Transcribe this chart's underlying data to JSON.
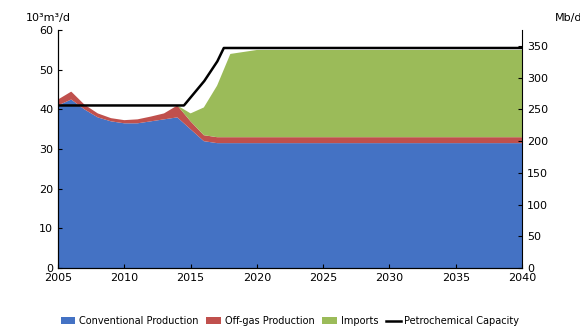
{
  "ylabel_left": "10³m³/d",
  "ylabel_right": "Mb/d",
  "ylim_left": [
    0,
    60
  ],
  "ylim_right": [
    0,
    375
  ],
  "xlim": [
    2005,
    2040
  ],
  "yticks_left": [
    0,
    10,
    20,
    30,
    40,
    50,
    60
  ],
  "yticks_right": [
    0,
    50,
    100,
    150,
    200,
    250,
    300,
    350
  ],
  "xticks": [
    2005,
    2010,
    2015,
    2020,
    2025,
    2030,
    2035,
    2040
  ],
  "colors": {
    "conventional": "#4472C4",
    "offgas": "#C0504D",
    "imports": "#9BBB59",
    "capacity_line": "#000000"
  },
  "conventional_x": [
    2005,
    2006,
    2007,
    2008,
    2009,
    2010,
    2011,
    2012,
    2013,
    2014,
    2015,
    2016,
    2017,
    2018,
    2019,
    2020,
    2025,
    2030,
    2035,
    2040
  ],
  "conventional_y": [
    41.0,
    42.5,
    40.0,
    38.0,
    37.0,
    36.5,
    36.5,
    37.0,
    37.5,
    38.0,
    35.0,
    32.0,
    31.5,
    31.5,
    31.5,
    31.5,
    31.5,
    31.5,
    31.5,
    31.5
  ],
  "offgas_x": [
    2005,
    2006,
    2007,
    2008,
    2009,
    2010,
    2011,
    2012,
    2013,
    2014,
    2015,
    2016,
    2017,
    2018,
    2019,
    2020,
    2025,
    2030,
    2035,
    2040
  ],
  "offgas_y": [
    1.5,
    2.0,
    1.2,
    1.0,
    0.8,
    0.8,
    1.0,
    1.2,
    1.5,
    3.0,
    2.0,
    1.5,
    1.5,
    1.5,
    1.5,
    1.5,
    1.5,
    1.5,
    1.5,
    1.5
  ],
  "imports_x": [
    2005,
    2006,
    2007,
    2008,
    2009,
    2010,
    2011,
    2012,
    2013,
    2014,
    2015,
    2016,
    2017,
    2018,
    2019,
    2020,
    2025,
    2030,
    2035,
    2040
  ],
  "imports_y": [
    0,
    0,
    0,
    0,
    0,
    0,
    0,
    0,
    0,
    0,
    2.0,
    7.0,
    13.0,
    21.0,
    21.5,
    22.0,
    22.0,
    22.0,
    22.0,
    22.0
  ],
  "capacity_x": [
    2005,
    2006,
    2007,
    2008,
    2009,
    2010,
    2011,
    2012,
    2013,
    2014,
    2014.5,
    2015,
    2016,
    2017,
    2017.5,
    2018,
    2019,
    2020,
    2025,
    2030,
    2035,
    2040
  ],
  "capacity_y": [
    41,
    41,
    41,
    41,
    41,
    41,
    41,
    41,
    41,
    41,
    41,
    43,
    47,
    52.0,
    55.5,
    55.5,
    55.5,
    55.5,
    55.5,
    55.5,
    55.5,
    55.5
  ],
  "legend_labels": [
    "Conventional Production",
    "Off-gas Production",
    "Imports",
    "Petrochemical Capacity"
  ],
  "background_color": "#ffffff"
}
